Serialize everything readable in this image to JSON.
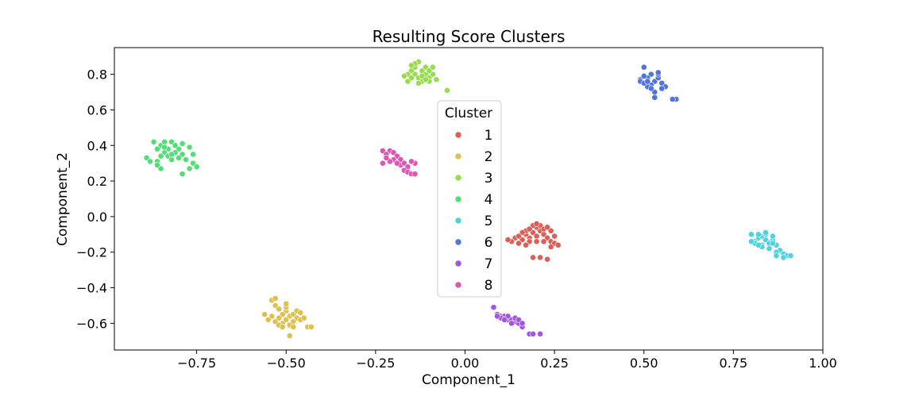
{
  "chart_data": {
    "type": "scatter",
    "title": "Resulting Score Clusters",
    "xlabel": "Component_1",
    "ylabel": "Component_2",
    "xlim": [
      -0.98,
      1.0
    ],
    "ylim": [
      -0.75,
      0.95
    ],
    "xticks": [
      -0.75,
      -0.5,
      -0.25,
      0.0,
      0.25,
      0.5,
      0.75,
      1.0
    ],
    "xtick_labels": [
      "−0.75",
      "−0.50",
      "−0.25",
      "0.00",
      "0.25",
      "0.50",
      "0.75",
      "1.00"
    ],
    "yticks": [
      -0.6,
      -0.4,
      -0.2,
      0.0,
      0.2,
      0.4,
      0.6,
      0.8
    ],
    "ytick_labels": [
      "−0.6",
      "−0.4",
      "−0.2",
      "0.0",
      "0.2",
      "0.4",
      "0.6",
      "0.8"
    ],
    "grid": false,
    "legend": {
      "title": "Cluster",
      "placement": "center"
    },
    "series": [
      {
        "name": "1",
        "color": "#db5f57",
        "points": [
          [
            0.19,
            -0.09
          ],
          [
            0.21,
            -0.08
          ],
          [
            0.2,
            -0.11
          ],
          [
            0.18,
            -0.12
          ],
          [
            0.22,
            -0.1
          ],
          [
            0.23,
            -0.12
          ],
          [
            0.17,
            -0.1
          ],
          [
            0.2,
            -0.06
          ],
          [
            0.19,
            -0.05
          ],
          [
            0.21,
            -0.05
          ],
          [
            0.24,
            -0.08
          ],
          [
            0.25,
            -0.11
          ],
          [
            0.16,
            -0.13
          ],
          [
            0.14,
            -0.12
          ],
          [
            0.13,
            -0.14
          ],
          [
            0.15,
            -0.15
          ],
          [
            0.18,
            -0.14
          ],
          [
            0.2,
            -0.14
          ],
          [
            0.22,
            -0.14
          ],
          [
            0.24,
            -0.14
          ],
          [
            0.25,
            -0.15
          ],
          [
            0.26,
            -0.16
          ],
          [
            0.21,
            -0.23
          ],
          [
            0.23,
            -0.24
          ],
          [
            0.19,
            -0.23
          ],
          [
            0.17,
            -0.08
          ],
          [
            0.16,
            -0.09
          ],
          [
            0.18,
            -0.07
          ],
          [
            0.22,
            -0.07
          ],
          [
            0.2,
            -0.04
          ],
          [
            0.23,
            -0.06
          ],
          [
            0.12,
            -0.13
          ],
          [
            0.15,
            -0.11
          ],
          [
            0.24,
            -0.17
          ],
          [
            0.17,
            -0.16
          ]
        ]
      },
      {
        "name": "2",
        "color": "#dcc050",
        "points": [
          [
            -0.53,
            -0.5
          ],
          [
            -0.52,
            -0.52
          ],
          [
            -0.5,
            -0.53
          ],
          [
            -0.51,
            -0.55
          ],
          [
            -0.49,
            -0.56
          ],
          [
            -0.48,
            -0.55
          ],
          [
            -0.47,
            -0.57
          ],
          [
            -0.46,
            -0.58
          ],
          [
            -0.54,
            -0.56
          ],
          [
            -0.55,
            -0.58
          ],
          [
            -0.53,
            -0.59
          ],
          [
            -0.51,
            -0.6
          ],
          [
            -0.5,
            -0.58
          ],
          [
            -0.48,
            -0.59
          ],
          [
            -0.45,
            -0.57
          ],
          [
            -0.44,
            -0.62
          ],
          [
            -0.43,
            -0.62
          ],
          [
            -0.49,
            -0.67
          ],
          [
            -0.52,
            -0.61
          ],
          [
            -0.54,
            -0.47
          ],
          [
            -0.53,
            -0.46
          ],
          [
            -0.5,
            -0.51
          ],
          [
            -0.47,
            -0.53
          ],
          [
            -0.52,
            -0.57
          ],
          [
            -0.49,
            -0.61
          ],
          [
            -0.56,
            -0.55
          ],
          [
            -0.5,
            -0.49
          ],
          [
            -0.51,
            -0.62
          ],
          [
            -0.46,
            -0.54
          ],
          [
            -0.48,
            -0.62
          ]
        ]
      },
      {
        "name": "3",
        "color": "#97dc4f",
        "points": [
          [
            -0.14,
            0.8
          ],
          [
            -0.12,
            0.82
          ],
          [
            -0.11,
            0.8
          ],
          [
            -0.13,
            0.78
          ],
          [
            -0.1,
            0.78
          ],
          [
            -0.09,
            0.8
          ],
          [
            -0.15,
            0.82
          ],
          [
            -0.16,
            0.8
          ],
          [
            -0.14,
            0.84
          ],
          [
            -0.13,
            0.87
          ],
          [
            -0.11,
            0.84
          ],
          [
            -0.1,
            0.82
          ],
          [
            -0.12,
            0.76
          ],
          [
            -0.15,
            0.78
          ],
          [
            -0.16,
            0.76
          ],
          [
            -0.08,
            0.77
          ],
          [
            -0.05,
            0.71
          ],
          [
            -0.12,
            0.79
          ],
          [
            -0.14,
            0.86
          ],
          [
            -0.1,
            0.76
          ],
          [
            -0.13,
            0.75
          ],
          [
            -0.11,
            0.77
          ],
          [
            -0.15,
            0.85
          ],
          [
            -0.17,
            0.79
          ],
          [
            -0.09,
            0.84
          ]
        ]
      },
      {
        "name": "4",
        "color": "#56dc77",
        "points": [
          [
            -0.85,
            0.4
          ],
          [
            -0.83,
            0.38
          ],
          [
            -0.82,
            0.42
          ],
          [
            -0.84,
            0.36
          ],
          [
            -0.8,
            0.38
          ],
          [
            -0.79,
            0.35
          ],
          [
            -0.86,
            0.38
          ],
          [
            -0.87,
            0.42
          ],
          [
            -0.84,
            0.42
          ],
          [
            -0.81,
            0.4
          ],
          [
            -0.83,
            0.34
          ],
          [
            -0.8,
            0.33
          ],
          [
            -0.82,
            0.32
          ],
          [
            -0.85,
            0.34
          ],
          [
            -0.89,
            0.33
          ],
          [
            -0.88,
            0.31
          ],
          [
            -0.86,
            0.31
          ],
          [
            -0.85,
            0.27
          ],
          [
            -0.79,
            0.24
          ],
          [
            -0.77,
            0.27
          ],
          [
            -0.76,
            0.3
          ],
          [
            -0.76,
            0.35
          ],
          [
            -0.77,
            0.39
          ],
          [
            -0.81,
            0.36
          ],
          [
            -0.86,
            0.29
          ],
          [
            -0.79,
            0.41
          ],
          [
            -0.84,
            0.39
          ],
          [
            -0.82,
            0.35
          ],
          [
            -0.78,
            0.32
          ],
          [
            -0.75,
            0.28
          ]
        ]
      },
      {
        "name": "5",
        "color": "#4fd2dc",
        "points": [
          [
            0.82,
            -0.12
          ],
          [
            0.84,
            -0.13
          ],
          [
            0.83,
            -0.11
          ],
          [
            0.81,
            -0.14
          ],
          [
            0.85,
            -0.15
          ],
          [
            0.83,
            -0.16
          ],
          [
            0.86,
            -0.13
          ],
          [
            0.87,
            -0.16
          ],
          [
            0.8,
            -0.1
          ],
          [
            0.82,
            -0.1
          ],
          [
            0.84,
            -0.1
          ],
          [
            0.86,
            -0.11
          ],
          [
            0.88,
            -0.19
          ],
          [
            0.89,
            -0.21
          ],
          [
            0.9,
            -0.22
          ],
          [
            0.91,
            -0.22
          ],
          [
            0.87,
            -0.2
          ],
          [
            0.85,
            -0.18
          ],
          [
            0.81,
            -0.15
          ],
          [
            0.83,
            -0.17
          ],
          [
            0.8,
            -0.14
          ],
          [
            0.84,
            -0.09
          ],
          [
            0.86,
            -0.15
          ],
          [
            0.89,
            -0.23
          ],
          [
            0.87,
            -0.22
          ],
          [
            0.82,
            -0.16
          ]
        ]
      },
      {
        "name": "6",
        "color": "#5073dc",
        "points": [
          [
            0.5,
            0.84
          ],
          [
            0.52,
            0.8
          ],
          [
            0.51,
            0.78
          ],
          [
            0.53,
            0.76
          ],
          [
            0.49,
            0.77
          ],
          [
            0.52,
            0.74
          ],
          [
            0.54,
            0.78
          ],
          [
            0.55,
            0.75
          ],
          [
            0.53,
            0.7
          ],
          [
            0.53,
            0.67
          ],
          [
            0.51,
            0.73
          ],
          [
            0.49,
            0.76
          ],
          [
            0.54,
            0.8
          ],
          [
            0.59,
            0.66
          ],
          [
            0.58,
            0.66
          ],
          [
            0.56,
            0.73
          ],
          [
            0.52,
            0.72
          ],
          [
            0.5,
            0.75
          ],
          [
            0.55,
            0.72
          ],
          [
            0.54,
            0.81
          ],
          [
            0.5,
            0.79
          ],
          [
            0.51,
            0.76
          ]
        ]
      },
      {
        "name": "7",
        "color": "#a157db",
        "points": [
          [
            0.08,
            -0.51
          ],
          [
            0.09,
            -0.55
          ],
          [
            0.1,
            -0.56
          ],
          [
            0.11,
            -0.56
          ],
          [
            0.12,
            -0.58
          ],
          [
            0.13,
            -0.58
          ],
          [
            0.14,
            -0.59
          ],
          [
            0.15,
            -0.6
          ],
          [
            0.16,
            -0.62
          ],
          [
            0.18,
            -0.66
          ],
          [
            0.19,
            -0.66
          ],
          [
            0.21,
            -0.66
          ],
          [
            0.1,
            -0.57
          ],
          [
            0.12,
            -0.56
          ],
          [
            0.14,
            -0.57
          ],
          [
            0.11,
            -0.58
          ],
          [
            0.13,
            -0.6
          ],
          [
            0.15,
            -0.58
          ],
          [
            0.16,
            -0.6
          ],
          [
            0.09,
            -0.56
          ]
        ]
      },
      {
        "name": "8",
        "color": "#db57b2",
        "points": [
          [
            -0.23,
            0.37
          ],
          [
            -0.21,
            0.37
          ],
          [
            -0.2,
            0.36
          ],
          [
            -0.22,
            0.35
          ],
          [
            -0.19,
            0.34
          ],
          [
            -0.18,
            0.32
          ],
          [
            -0.2,
            0.32
          ],
          [
            -0.21,
            0.31
          ],
          [
            -0.23,
            0.3
          ],
          [
            -0.18,
            0.29
          ],
          [
            -0.17,
            0.3
          ],
          [
            -0.16,
            0.28
          ],
          [
            -0.17,
            0.26
          ],
          [
            -0.16,
            0.25
          ],
          [
            -0.15,
            0.24
          ],
          [
            -0.14,
            0.24
          ],
          [
            -0.14,
            0.3
          ],
          [
            -0.15,
            0.31
          ],
          [
            -0.19,
            0.3
          ],
          [
            -0.22,
            0.33
          ]
        ]
      }
    ]
  }
}
